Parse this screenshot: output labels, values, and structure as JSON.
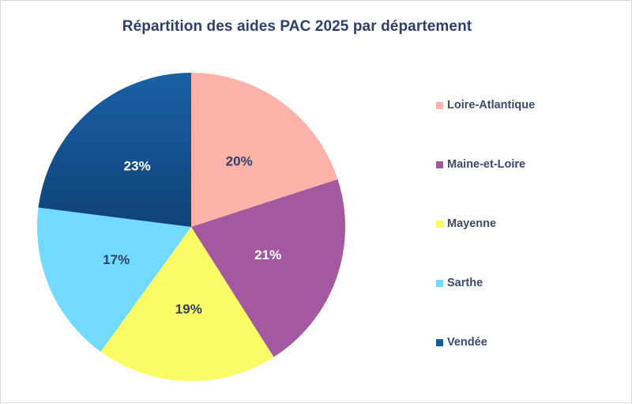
{
  "chart_data": {
    "type": "pie",
    "title": "Répartition des aides PAC 2025 par département",
    "categories": [
      "Loire-Atlantique",
      "Maine-et-Loire",
      "Mayenne",
      "Sarthe",
      "Vendée"
    ],
    "values": [
      20,
      21,
      19,
      17,
      23
    ],
    "value_labels": [
      "20%",
      "21%",
      "19%",
      "17%",
      "23%"
    ],
    "colors": [
      "#fdb3aa",
      "#a3589f",
      "#fbfb66",
      "#72dafe",
      "#155a9c"
    ],
    "label_colors": [
      "#2e3f6b",
      "#ffffff",
      "#2e3f6b",
      "#2e3f6b",
      "#ffffff"
    ],
    "start_angle": "12 o'clock",
    "direction": "clockwise",
    "legend_position": "right",
    "xlabel": "",
    "ylabel": ""
  },
  "legend": {
    "items": [
      {
        "label": "Loire-Atlantique",
        "color": "#fdb3aa"
      },
      {
        "label": "Maine-et-Loire",
        "color": "#a3589f"
      },
      {
        "label": "Mayenne",
        "color": "#fbfb66"
      },
      {
        "label": "Sarthe",
        "color": "#72dafe"
      },
      {
        "label": "Vendée",
        "color": "#155a9c"
      }
    ]
  }
}
